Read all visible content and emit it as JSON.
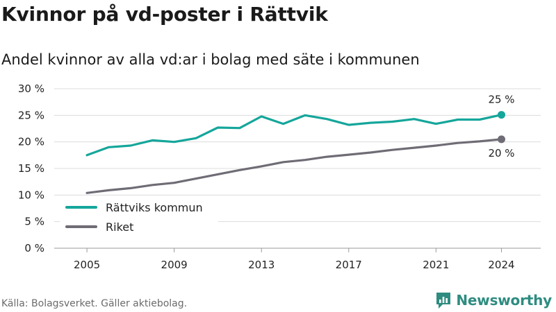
{
  "header": {
    "title": "Kvinnor på vd-poster i Rättvik",
    "subtitle": "Andel kvinnor av alla vd:ar i bolag med säte i kommunen"
  },
  "footer": {
    "source": "Källa: Bolagsverket. Gäller aktiebolag.",
    "brand": "Newsworthy"
  },
  "chart_data": {
    "type": "line",
    "title": "Kvinnor på vd-poster i Rättvik",
    "subtitle": "Andel kvinnor av alla vd:ar i bolag med säte i kommunen",
    "x": [
      2005,
      2006,
      2007,
      2008,
      2009,
      2010,
      2011,
      2012,
      2013,
      2014,
      2015,
      2016,
      2017,
      2018,
      2019,
      2020,
      2021,
      2022,
      2023,
      2024
    ],
    "x_ticks": [
      2005,
      2009,
      2013,
      2017,
      2021,
      2024
    ],
    "y_ticks": [
      0,
      5,
      10,
      15,
      20,
      25,
      30
    ],
    "y_tick_labels": [
      "0 %",
      "5 %",
      "10 %",
      "15 %",
      "20 %",
      "25 %",
      "30 %"
    ],
    "ylim": [
      0,
      30
    ],
    "grid": true,
    "legend_position": "lower-left",
    "series": [
      {
        "name": "Rättviks kommun",
        "color": "#15a69b",
        "values": [
          17.5,
          19.0,
          19.3,
          20.3,
          20.0,
          20.7,
          22.7,
          22.6,
          24.8,
          23.4,
          25.0,
          24.3,
          23.2,
          23.6,
          23.8,
          24.3,
          23.4,
          24.2,
          24.2,
          25.1
        ],
        "end_label": "25 %"
      },
      {
        "name": "Riket",
        "color": "#6f6c75",
        "values": [
          10.4,
          10.9,
          11.3,
          11.9,
          12.3,
          13.1,
          13.9,
          14.7,
          15.4,
          16.2,
          16.6,
          17.2,
          17.6,
          18.0,
          18.5,
          18.9,
          19.3,
          19.8,
          20.1,
          20.5
        ],
        "end_label": "20 %"
      }
    ]
  }
}
